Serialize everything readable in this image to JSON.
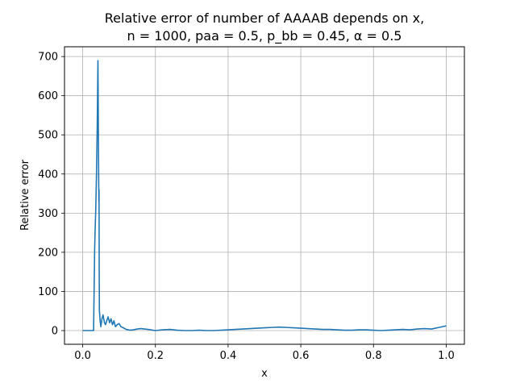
{
  "chart_data": {
    "type": "line",
    "title_line1": "Relative error of number of AAAAB depends on x,",
    "title_line2": "n = 1000, paa = 0.5, p_bb = 0.45, α = 0.5",
    "xlabel": "x",
    "ylabel": "Relative error",
    "xlim": [
      -0.05,
      1.05
    ],
    "ylim": [
      -35,
      725
    ],
    "grid": true,
    "x_ticks": [
      0.0,
      0.2,
      0.4,
      0.6,
      0.8,
      1.0
    ],
    "x_tick_labels": [
      "0.0",
      "0.2",
      "0.4",
      "0.6",
      "0.8",
      "1.0"
    ],
    "y_ticks": [
      0,
      100,
      200,
      300,
      400,
      500,
      600,
      700
    ],
    "y_tick_labels": [
      "0",
      "100",
      "200",
      "300",
      "400",
      "500",
      "600",
      "700"
    ],
    "line_color": "#1f77b4",
    "series": [
      {
        "x": [
          0.0,
          0.01,
          0.02,
          0.03,
          0.033,
          0.034,
          0.036,
          0.038,
          0.04,
          0.042,
          0.0435,
          0.0445,
          0.045,
          0.0455,
          0.046,
          0.047,
          0.048,
          0.05,
          0.053,
          0.056,
          0.06,
          0.063,
          0.066,
          0.07,
          0.074,
          0.078,
          0.082,
          0.086,
          0.09,
          0.095,
          0.1,
          0.105,
          0.11,
          0.12,
          0.13,
          0.14,
          0.15,
          0.16,
          0.18,
          0.2,
          0.22,
          0.24,
          0.26,
          0.28,
          0.3,
          0.32,
          0.34,
          0.36,
          0.38,
          0.4,
          0.42,
          0.44,
          0.46,
          0.48,
          0.5,
          0.52,
          0.54,
          0.56,
          0.58,
          0.6,
          0.62,
          0.64,
          0.66,
          0.68,
          0.7,
          0.72,
          0.74,
          0.76,
          0.78,
          0.8,
          0.82,
          0.84,
          0.86,
          0.88,
          0.9,
          0.92,
          0.94,
          0.96,
          0.97,
          0.98,
          0.99,
          1.0
        ],
        "y": [
          0,
          0,
          0,
          0,
          210,
          250,
          310,
          400,
          520,
          690,
          460,
          330,
          360,
          150,
          50,
          40,
          25,
          10,
          30,
          40,
          20,
          15,
          25,
          35,
          20,
          30,
          15,
          25,
          10,
          15,
          18,
          10,
          8,
          3,
          1,
          2,
          4,
          5,
          3,
          0,
          2,
          3,
          1,
          0,
          0,
          1,
          0,
          0,
          1,
          2,
          3,
          4,
          5,
          6,
          7,
          8,
          9,
          8,
          7,
          6,
          5,
          4,
          3,
          3,
          2,
          1,
          1,
          2,
          2,
          1,
          0,
          1,
          2,
          3,
          2,
          4,
          5,
          4,
          6,
          8,
          10,
          12
        ]
      }
    ]
  }
}
